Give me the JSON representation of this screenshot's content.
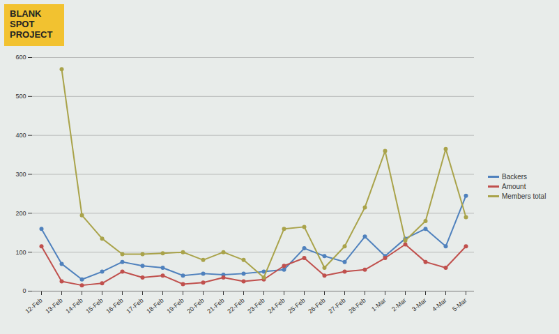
{
  "chart_data": {
    "type": "line",
    "title": "BLANK SPOT PROJECT",
    "categories": [
      "12-Feb",
      "13-Feb",
      "14-Feb",
      "15-Feb",
      "16-Feb",
      "17-Feb",
      "18-Feb",
      "19-Feb",
      "20-Feb",
      "21-Feb",
      "22-Feb",
      "23-Feb",
      "24-Feb",
      "25-Feb",
      "26-Feb",
      "27-Feb",
      "28-Feb",
      "1-Mar",
      "2-Mar",
      "3-Mar",
      "4-Mar",
      "5-Mar"
    ],
    "series": [
      {
        "name": "Backers",
        "color": "#4f81bd",
        "values": [
          160,
          70,
          30,
          50,
          75,
          65,
          60,
          40,
          45,
          42,
          45,
          50,
          55,
          110,
          90,
          75,
          140,
          90,
          135,
          160,
          115,
          245
        ]
      },
      {
        "name": "Amount",
        "color": "#c0504d",
        "values": [
          115,
          25,
          15,
          20,
          50,
          35,
          40,
          18,
          22,
          35,
          25,
          30,
          65,
          85,
          40,
          50,
          55,
          85,
          120,
          75,
          60,
          115
        ]
      },
      {
        "name": "Members total",
        "color": "#a9a34a",
        "values": [
          null,
          570,
          195,
          135,
          95,
          95,
          97,
          100,
          80,
          100,
          80,
          35,
          160,
          165,
          60,
          115,
          215,
          360,
          130,
          180,
          365,
          190
        ]
      }
    ],
    "ylim": [
      0,
      600
    ],
    "yticks": [
      0,
      100,
      200,
      300,
      400,
      500,
      600
    ],
    "grid": true,
    "legend": "right",
    "marker": "circle",
    "line_style": "solid"
  }
}
